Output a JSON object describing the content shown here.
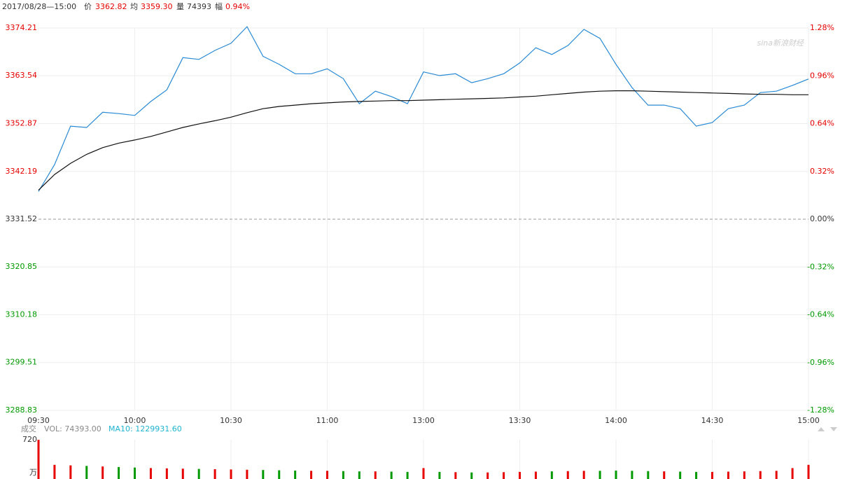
{
  "header": {
    "datetime": "2017/08/28—15:00",
    "price_label": "价",
    "price": "3362.82",
    "avg_label": "均",
    "avg": "3359.30",
    "vol_label": "量",
    "vol": "74393",
    "change_label": "幅",
    "change": "0.94%"
  },
  "watermark": "sina新浪财经",
  "chart_data": [
    {
      "type": "line",
      "categories": [
        "09:30",
        null,
        null,
        null,
        null,
        null,
        "10:00",
        null,
        null,
        null,
        null,
        null,
        "10:30",
        null,
        null,
        null,
        null,
        null,
        "11:00",
        null,
        null,
        null,
        null,
        null,
        "13:00",
        null,
        null,
        null,
        null,
        null,
        "13:30",
        null,
        null,
        null,
        null,
        null,
        "14:00",
        null,
        null,
        null,
        null,
        null,
        "14:30",
        null,
        null,
        null,
        null,
        null,
        "15:00"
      ],
      "series": [
        {
          "color": "#2a8ad4",
          "values": [
            3337.7,
            3343.7,
            3352.3,
            3352.0,
            3355.4,
            3355.1,
            3354.7,
            3357.8,
            3360.4,
            3367.6,
            3367.2,
            3369.2,
            3370.8,
            3374.5,
            3367.9,
            3366.1,
            3364.0,
            3364.0,
            3365.1,
            3362.9,
            3357.3,
            3360.1,
            3358.9,
            3357.3,
            3364.4,
            3363.6,
            3364.0,
            3362.0,
            3362.9,
            3364.0,
            3366.4,
            3369.8,
            3368.3,
            3370.3,
            3373.9,
            3371.9,
            3366.1,
            3360.9,
            3357.0,
            3357.0,
            3356.2,
            3352.3,
            3353.1,
            3356.2,
            3357.0,
            3359.8,
            3360.1,
            3361.4,
            3362.82
          ]
        },
        {
          "color": "#111111",
          "values": [
            3338.0,
            3341.5,
            3344.0,
            3346.0,
            3347.5,
            3348.5,
            3349.2,
            3350.0,
            3351.0,
            3352.0,
            3352.8,
            3353.5,
            3354.3,
            3355.3,
            3356.2,
            3356.7,
            3357.0,
            3357.3,
            3357.5,
            3357.7,
            3357.8,
            3357.9,
            3358.0,
            3358.0,
            3358.1,
            3358.2,
            3358.3,
            3358.4,
            3358.5,
            3358.6,
            3358.8,
            3359.0,
            3359.3,
            3359.6,
            3359.9,
            3360.1,
            3360.2,
            3360.2,
            3360.1,
            3360.0,
            3359.9,
            3359.8,
            3359.7,
            3359.6,
            3359.5,
            3359.4,
            3359.4,
            3359.3,
            3359.3
          ]
        }
      ],
      "ylim": [
        3288.83,
        3374.21
      ],
      "yticks": [
        3288.83,
        3299.51,
        3310.18,
        3320.85,
        3331.52,
        3342.19,
        3352.87,
        3363.54,
        3374.21
      ],
      "prev_close": 3331.52,
      "y2lim": [
        -1.28,
        1.28
      ],
      "y2ticks": [
        {
          "value": -1.28,
          "label": "-1.28%"
        },
        {
          "value": -0.96,
          "label": "-0.96%"
        },
        {
          "value": -0.64,
          "label": "-0.64%"
        },
        {
          "value": -0.32,
          "label": "-0.32%"
        },
        {
          "value": 0,
          "label": "0.00%"
        },
        {
          "value": 0.32,
          "label": "0.32%"
        },
        {
          "value": 0.64,
          "label": "0.64%"
        },
        {
          "value": 0.96,
          "label": "0.96%"
        },
        {
          "value": 1.28,
          "label": "1.28%"
        }
      ],
      "up_color": "#e60000",
      "down_color": "#009900",
      "grid": true
    },
    {
      "type": "bar",
      "title": "成交",
      "annotations": [
        "VOL: 74393.00",
        "MA10: 1229931.60"
      ],
      "values": [
        720,
        260,
        250,
        240,
        230,
        220,
        210,
        200,
        195,
        190,
        185,
        180,
        175,
        170,
        165,
        160,
        155,
        150,
        150,
        145,
        140,
        140,
        135,
        130,
        200,
        130,
        125,
        120,
        120,
        125,
        130,
        135,
        140,
        145,
        150,
        150,
        155,
        150,
        145,
        140,
        135,
        130,
        130,
        135,
        140,
        145,
        150,
        200,
        260
      ],
      "ylim": [
        0,
        720
      ],
      "yticks": [
        720
      ],
      "unit": "万",
      "up_color": "#e60000",
      "down_color": "#009900"
    }
  ]
}
